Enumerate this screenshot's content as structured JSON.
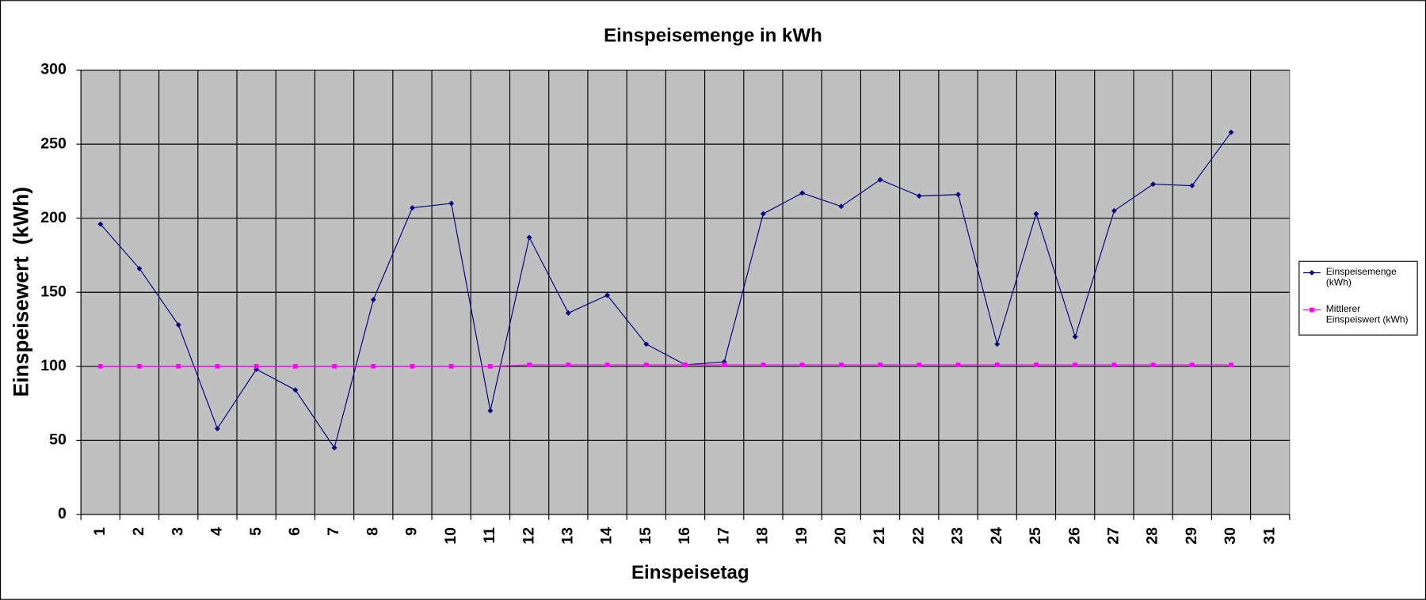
{
  "chart_data": {
    "type": "line",
    "title": "Einspeisemenge in kWh",
    "x_label": "Einspeisetag",
    "y_label": "Einspeisewert  (kWh)",
    "categories": [
      1,
      2,
      3,
      4,
      5,
      6,
      7,
      8,
      9,
      10,
      11,
      12,
      13,
      14,
      15,
      16,
      17,
      18,
      19,
      20,
      21,
      22,
      23,
      24,
      25,
      26,
      27,
      28,
      29,
      30,
      31
    ],
    "series": [
      {
        "name": "Einspeisemenge (kWh)",
        "color": "#000080",
        "marker": "diamond",
        "values": [
          196,
          166,
          128,
          58,
          98,
          84,
          45,
          145,
          207,
          210,
          70,
          187,
          136,
          148,
          115,
          101,
          103,
          203,
          217,
          208,
          226,
          215,
          216,
          115,
          203,
          120,
          205,
          223,
          222,
          258,
          null
        ]
      },
      {
        "name": "Mittlerer Einspeiswert (kWh)",
        "color": "#ff00ff",
        "marker": "square",
        "values": [
          100,
          100,
          100,
          100,
          100,
          100,
          100,
          100,
          100,
          100,
          100,
          101,
          101,
          101,
          101,
          101,
          101,
          101,
          101,
          101,
          101,
          101,
          101,
          101,
          101,
          101,
          101,
          101,
          101,
          101,
          null
        ]
      }
    ],
    "ylim": [
      0,
      300
    ],
    "yticks": [
      0,
      50,
      100,
      150,
      200,
      250,
      300
    ],
    "grid": true,
    "legend": "right",
    "plot_background": "#c0c0c0"
  }
}
